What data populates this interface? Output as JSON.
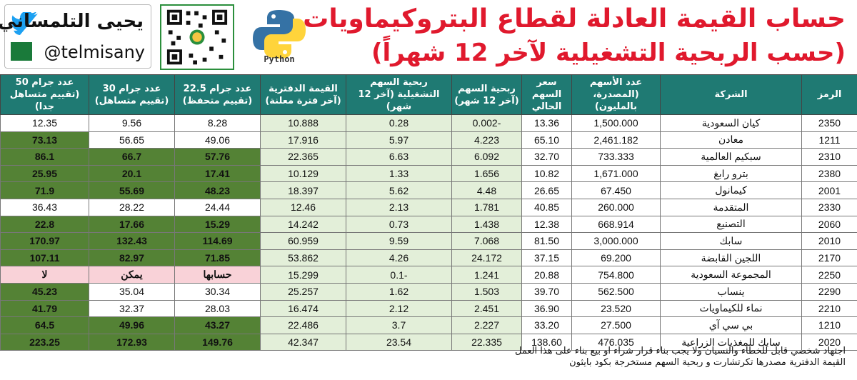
{
  "header": {
    "title_line1": "حساب القيمة العادلة لقطاع البتروكيماويات",
    "title_line2": "(حسب الربحية التشغيلية لآخر 12 شهراً)",
    "python_label": "Python",
    "author_name": "يحيى التلمساني",
    "author_handle": "@telmisany",
    "icons": [
      "python-logo",
      "qr-code",
      "twitter-icon",
      "saudi-flag"
    ]
  },
  "columns": [
    "الرمز",
    "الشركة",
    "عدد الأسهم (المصدرة، بالمليون)",
    "سعر السهم الحالي",
    "ربحية السهم (آخر 12 شهر)",
    "ربحية السهم التشغيلية (آخر 12 شهر)",
    "القيمة الدفترية (آخر فترة معلنة)",
    "عدد جرام 22.5 (تقييم متحفظ)",
    "عدد جرام 30 (تقييم متساهل)",
    "عدد جرام 50 (تقييم متساهل جدا)"
  ],
  "rows": [
    {
      "symbol": "2350",
      "company": "كيان السعودية",
      "shares": "1,500.000",
      "price": "13.36",
      "eps": "-0.002",
      "op_eps": "0.28",
      "book": "10.888",
      "v225": "8.28",
      "v30": "9.56",
      "v50": "12.35",
      "s225": "red",
      "s30": "red",
      "s50": "red"
    },
    {
      "symbol": "1211",
      "company": "معادن",
      "shares": "2,461.182",
      "price": "65.10",
      "eps": "4.223",
      "op_eps": "5.97",
      "book": "17.916",
      "v225": "49.06",
      "v30": "56.65",
      "v50": "73.13",
      "s225": "red",
      "s30": "red",
      "s50": "dark"
    },
    {
      "symbol": "2310",
      "company": "سبكيم العالمية",
      "shares": "733.333",
      "price": "32.70",
      "eps": "6.092",
      "op_eps": "6.63",
      "book": "22.365",
      "v225": "57.76",
      "v30": "66.7",
      "v50": "86.1",
      "s225": "dark",
      "s30": "dark",
      "s50": "dark"
    },
    {
      "symbol": "2380",
      "company": "بترو رابغ",
      "shares": "1,671.000",
      "price": "10.82",
      "eps": "1.656",
      "op_eps": "1.33",
      "book": "10.129",
      "v225": "17.41",
      "v30": "20.1",
      "v50": "25.95",
      "s225": "dark",
      "s30": "dark",
      "s50": "dark"
    },
    {
      "symbol": "2001",
      "company": "كيمانول",
      "shares": "67.450",
      "price": "26.65",
      "eps": "4.48",
      "op_eps": "5.62",
      "book": "18.397",
      "v225": "48.23",
      "v30": "55.69",
      "v50": "71.9",
      "s225": "dark",
      "s30": "dark",
      "s50": "dark"
    },
    {
      "symbol": "2330",
      "company": "المتقدمة",
      "shares": "260.000",
      "price": "40.85",
      "eps": "1.781",
      "op_eps": "2.13",
      "book": "12.46",
      "v225": "24.44",
      "v30": "28.22",
      "v50": "36.43",
      "s225": "red",
      "s30": "red",
      "s50": "red"
    },
    {
      "symbol": "2060",
      "company": "التصنيع",
      "shares": "668.914",
      "price": "12.38",
      "eps": "1.438",
      "op_eps": "0.73",
      "book": "14.242",
      "v225": "15.29",
      "v30": "17.66",
      "v50": "22.8",
      "s225": "dark",
      "s30": "dark",
      "s50": "dark"
    },
    {
      "symbol": "2010",
      "company": "سابك",
      "shares": "3,000.000",
      "price": "81.50",
      "eps": "7.068",
      "op_eps": "9.59",
      "book": "60.959",
      "v225": "114.69",
      "v30": "132.43",
      "v50": "170.97",
      "s225": "dark",
      "s30": "dark",
      "s50": "dark"
    },
    {
      "symbol": "2170",
      "company": "اللجين القابضة",
      "shares": "69.200",
      "price": "37.15",
      "eps": "24.172",
      "op_eps": "4.26",
      "book": "53.862",
      "v225": "71.85",
      "v30": "82.97",
      "v50": "107.11",
      "s225": "dark",
      "s30": "dark",
      "s50": "dark"
    },
    {
      "symbol": "2250",
      "company": "المجموعة السعودية",
      "shares": "754.800",
      "price": "20.88",
      "eps": "1.241",
      "op_eps": "-0.1",
      "book": "15.299",
      "v225": "حسابها",
      "v30": "يمكن",
      "v50": "لا",
      "s225": "pink",
      "s30": "pink",
      "s50": "pink"
    },
    {
      "symbol": "2290",
      "company": "ينساب",
      "shares": "562.500",
      "price": "39.70",
      "eps": "1.503",
      "op_eps": "1.62",
      "book": "25.257",
      "v225": "30.34",
      "v30": "35.04",
      "v50": "45.23",
      "s225": "red",
      "s30": "red",
      "s50": "dark"
    },
    {
      "symbol": "2210",
      "company": "نماء للكيماويات",
      "shares": "23.520",
      "price": "36.90",
      "eps": "2.451",
      "op_eps": "2.12",
      "book": "16.474",
      "v225": "28.03",
      "v30": "32.37",
      "v50": "41.79",
      "s225": "red",
      "s30": "red",
      "s50": "dark"
    },
    {
      "symbol": "1210",
      "company": "بي سي آي",
      "shares": "27.500",
      "price": "33.20",
      "eps": "2.227",
      "op_eps": "3.7",
      "book": "22.486",
      "v225": "43.27",
      "v30": "49.96",
      "v50": "64.5",
      "s225": "dark",
      "s30": "dark",
      "s50": "dark"
    },
    {
      "symbol": "2020",
      "company": "سابك للمغذيات الزراعية",
      "shares": "476.035",
      "price": "138.60",
      "eps": "22.335",
      "op_eps": "23.54",
      "book": "42.347",
      "v225": "149.76",
      "v30": "172.93",
      "v50": "223.25",
      "s225": "dark",
      "s30": "dark",
      "s50": "dark"
    }
  ],
  "notes": [
    "اجتهاد شخصي قابل للخطاء والنسيان ولا يجب بناء قرار شراء او بيع بناء على هذا العمل",
    "القيمة الدفترية مصدرها تكرتشارت و ربحية السهم مستخرجة بكود بايثون"
  ],
  "colors": {
    "header_bg": "#1f7a73",
    "dark_green": "#548235",
    "light_green": "#e3efd9",
    "red_text": "#e0192d",
    "pink_bg": "#f9d2d8",
    "title_red": "#e0192d"
  }
}
